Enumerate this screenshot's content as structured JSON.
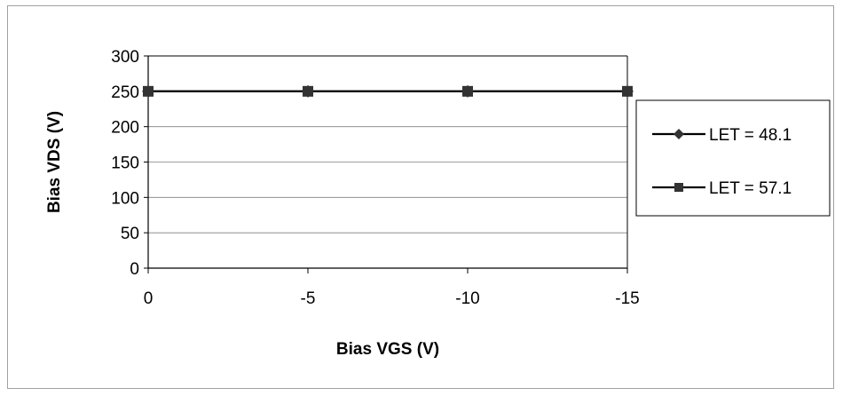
{
  "chart_data": {
    "type": "line",
    "title": "",
    "xlabel": "Bias VGS (V)",
    "ylabel": "Bias VDS (V)",
    "categories": [
      "0",
      "-5",
      "-10",
      "-15"
    ],
    "yticks": [
      0,
      50,
      100,
      150,
      200,
      250,
      300
    ],
    "ylim": [
      0,
      300
    ],
    "grid": true,
    "legend_position": "right",
    "series": [
      {
        "name": "LET = 48.1",
        "marker": "diamond",
        "values": [
          250,
          250,
          250,
          250
        ]
      },
      {
        "name": "LET = 57.1",
        "marker": "square",
        "values": [
          250,
          250,
          250,
          250
        ]
      }
    ]
  },
  "colors": {
    "line": "#000000",
    "marker": "#333333",
    "grid": "#808080"
  }
}
